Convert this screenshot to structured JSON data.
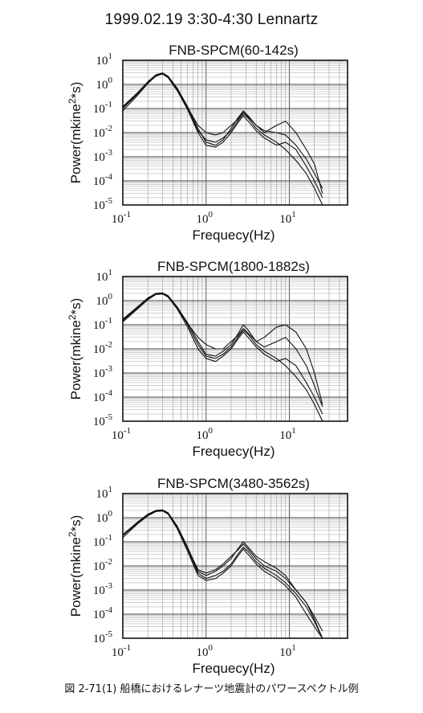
{
  "title": "1999.02.19 3:30-4:30  Lennartz",
  "caption": "図 2-71(1)  船橋におけるレナーツ地震計のパワースペクトル例",
  "chart_data": [
    {
      "type": "line",
      "title": "FNB-SPCM(60-142s)",
      "xlabel": "Frequecy(Hz)",
      "ylabel": "Power(mkine²*s)",
      "xscale": "log",
      "yscale": "log",
      "xlim": [
        0.1,
        50
      ],
      "ylim": [
        1e-05,
        10
      ],
      "x_ticks": [
        "10-1",
        "100",
        "101"
      ],
      "y_ticks": [
        "10-5",
        "10-4",
        "10-3",
        "10-2",
        "10-1",
        "100",
        "101"
      ],
      "grid": true,
      "series": [
        {
          "x": [
            0.1,
            0.15,
            0.2,
            0.25,
            0.3,
            0.35,
            0.45,
            0.6,
            0.8,
            1.0,
            1.3,
            1.6,
            2.0,
            2.4,
            2.8,
            3.2,
            4.0,
            5.0,
            7.0,
            9.0,
            12,
            16,
            20,
            25
          ],
          "y": [
            0.1,
            0.4,
            1.2,
            2.3,
            2.8,
            2.0,
            0.6,
            0.1,
            0.012,
            0.005,
            0.004,
            0.006,
            0.012,
            0.03,
            0.06,
            0.04,
            0.015,
            0.008,
            0.004,
            0.002,
            0.0007,
            0.0002,
            5e-05,
            1e-05
          ]
        },
        {
          "x": [
            0.1,
            0.15,
            0.2,
            0.25,
            0.3,
            0.35,
            0.45,
            0.6,
            0.8,
            1.0,
            1.3,
            1.6,
            2.0,
            2.4,
            2.8,
            3.2,
            4.0,
            5.0,
            7.0,
            9.0,
            12,
            16,
            20,
            25
          ],
          "y": [
            0.12,
            0.45,
            1.3,
            2.5,
            3.0,
            2.2,
            0.7,
            0.12,
            0.015,
            0.004,
            0.003,
            0.005,
            0.015,
            0.04,
            0.08,
            0.05,
            0.02,
            0.01,
            0.02,
            0.03,
            0.01,
            0.002,
            0.0005,
            3e-05
          ]
        },
        {
          "x": [
            0.1,
            0.15,
            0.2,
            0.25,
            0.3,
            0.35,
            0.45,
            0.6,
            0.8,
            1.0,
            1.3,
            1.6,
            2.0,
            2.4,
            2.8,
            3.2,
            4.0,
            5.0,
            7.0,
            9.0,
            12,
            16,
            20,
            25
          ],
          "y": [
            0.08,
            0.35,
            1.1,
            2.2,
            2.7,
            1.9,
            0.55,
            0.09,
            0.01,
            0.003,
            0.0025,
            0.004,
            0.01,
            0.025,
            0.05,
            0.03,
            0.012,
            0.006,
            0.003,
            0.004,
            0.002,
            0.0004,
            0.0001,
            2e-05
          ]
        },
        {
          "x": [
            0.1,
            0.15,
            0.2,
            0.25,
            0.3,
            0.35,
            0.45,
            0.6,
            0.8,
            1.0,
            1.3,
            1.6,
            2.0,
            2.4,
            2.8,
            3.2,
            4.0,
            5.0,
            7.0,
            9.0,
            12,
            16,
            20,
            25
          ],
          "y": [
            0.11,
            0.42,
            1.25,
            2.4,
            2.9,
            2.1,
            0.65,
            0.11,
            0.02,
            0.01,
            0.008,
            0.01,
            0.02,
            0.035,
            0.07,
            0.045,
            0.02,
            0.012,
            0.01,
            0.008,
            0.003,
            0.0008,
            0.0002,
            5e-05
          ]
        }
      ]
    },
    {
      "type": "line",
      "title": "FNB-SPCM(1800-1882s)",
      "xlabel": "Frequecy(Hz)",
      "ylabel": "Power(mkine²*s)",
      "xscale": "log",
      "yscale": "log",
      "xlim": [
        0.1,
        50
      ],
      "ylim": [
        1e-05,
        10
      ],
      "x_ticks": [
        "10-1",
        "100",
        "101"
      ],
      "y_ticks": [
        "10-5",
        "10-4",
        "10-3",
        "10-2",
        "10-1",
        "100",
        "101"
      ],
      "grid": true,
      "series": [
        {
          "x": [
            0.1,
            0.15,
            0.2,
            0.25,
            0.3,
            0.35,
            0.45,
            0.6,
            0.8,
            1.0,
            1.3,
            1.6,
            2.0,
            2.4,
            2.8,
            3.2,
            4.0,
            5.0,
            7.0,
            9.0,
            12,
            16,
            20,
            25
          ],
          "y": [
            0.15,
            0.5,
            1.2,
            1.9,
            2.0,
            1.5,
            0.5,
            0.1,
            0.015,
            0.005,
            0.004,
            0.006,
            0.012,
            0.03,
            0.06,
            0.04,
            0.015,
            0.008,
            0.004,
            0.002,
            0.0007,
            0.0002,
            5e-05,
            1e-05
          ]
        },
        {
          "x": [
            0.1,
            0.15,
            0.2,
            0.25,
            0.3,
            0.35,
            0.45,
            0.6,
            0.8,
            1.0,
            1.3,
            1.6,
            2.0,
            2.4,
            2.8,
            3.2,
            4.0,
            5.0,
            7.0,
            9.0,
            12,
            16,
            20,
            25
          ],
          "y": [
            0.17,
            0.55,
            1.3,
            2.0,
            2.1,
            1.6,
            0.55,
            0.12,
            0.02,
            0.006,
            0.005,
            0.008,
            0.015,
            0.04,
            0.1,
            0.06,
            0.02,
            0.03,
            0.08,
            0.1,
            0.05,
            0.01,
            0.001,
            5e-05
          ]
        },
        {
          "x": [
            0.1,
            0.15,
            0.2,
            0.25,
            0.3,
            0.35,
            0.45,
            0.6,
            0.8,
            1.0,
            1.3,
            1.6,
            2.0,
            2.4,
            2.8,
            3.2,
            4.0,
            5.0,
            7.0,
            9.0,
            12,
            16,
            20,
            25
          ],
          "y": [
            0.13,
            0.45,
            1.1,
            1.8,
            1.9,
            1.4,
            0.45,
            0.08,
            0.01,
            0.004,
            0.003,
            0.005,
            0.01,
            0.025,
            0.05,
            0.03,
            0.012,
            0.006,
            0.003,
            0.004,
            0.002,
            0.0004,
            0.0001,
            2e-05
          ]
        },
        {
          "x": [
            0.1,
            0.15,
            0.2,
            0.25,
            0.3,
            0.35,
            0.45,
            0.6,
            0.8,
            1.0,
            1.3,
            1.6,
            2.0,
            2.4,
            2.8,
            3.2,
            4.0,
            5.0,
            7.0,
            9.0,
            12,
            16,
            20,
            25
          ],
          "y": [
            0.16,
            0.52,
            1.25,
            1.95,
            2.05,
            1.55,
            0.52,
            0.11,
            0.03,
            0.015,
            0.01,
            0.01,
            0.02,
            0.035,
            0.07,
            0.045,
            0.02,
            0.012,
            0.02,
            0.03,
            0.01,
            0.002,
            0.0003,
            4e-05
          ]
        }
      ]
    },
    {
      "type": "line",
      "title": "FNB-SPCM(3480-3562s)",
      "xlabel": "Frequecy(Hz)",
      "ylabel": "Power(mkine²*s)",
      "xscale": "log",
      "yscale": "log",
      "xlim": [
        0.1,
        50
      ],
      "ylim": [
        1e-05,
        10
      ],
      "x_ticks": [
        "10-1",
        "100",
        "101"
      ],
      "y_ticks": [
        "10-5",
        "10-4",
        "10-3",
        "10-2",
        "10-1",
        "100",
        "101"
      ],
      "grid": true,
      "series": [
        {
          "x": [
            0.1,
            0.15,
            0.2,
            0.25,
            0.3,
            0.35,
            0.45,
            0.6,
            0.8,
            1.0,
            1.3,
            1.6,
            2.0,
            2.4,
            2.8,
            3.2,
            4.0,
            5.0,
            7.0,
            9.0,
            12,
            16,
            20,
            25
          ],
          "y": [
            0.18,
            0.6,
            1.3,
            1.9,
            2.0,
            1.5,
            0.4,
            0.05,
            0.005,
            0.003,
            0.004,
            0.006,
            0.012,
            0.03,
            0.06,
            0.04,
            0.015,
            0.008,
            0.004,
            0.002,
            0.0007,
            0.0002,
            5e-05,
            1e-05
          ]
        },
        {
          "x": [
            0.1,
            0.15,
            0.2,
            0.25,
            0.3,
            0.35,
            0.45,
            0.6,
            0.8,
            1.0,
            1.3,
            1.6,
            2.0,
            2.4,
            2.8,
            3.2,
            4.0,
            5.0,
            7.0,
            9.0,
            12,
            16,
            20,
            25
          ],
          "y": [
            0.2,
            0.65,
            1.4,
            2.0,
            2.1,
            1.6,
            0.45,
            0.06,
            0.006,
            0.004,
            0.006,
            0.01,
            0.02,
            0.05,
            0.1,
            0.06,
            0.025,
            0.015,
            0.008,
            0.004,
            0.001,
            0.0003,
            8e-05,
            2e-05
          ]
        },
        {
          "x": [
            0.1,
            0.15,
            0.2,
            0.25,
            0.3,
            0.35,
            0.45,
            0.6,
            0.8,
            1.0,
            1.3,
            1.6,
            2.0,
            2.4,
            2.8,
            3.2,
            4.0,
            5.0,
            7.0,
            9.0,
            12,
            16,
            20,
            25
          ],
          "y": [
            0.15,
            0.55,
            1.2,
            1.8,
            1.9,
            1.4,
            0.35,
            0.04,
            0.004,
            0.0025,
            0.003,
            0.005,
            0.01,
            0.025,
            0.05,
            0.03,
            0.012,
            0.006,
            0.003,
            0.0015,
            0.0005,
            0.0001,
            3e-05,
            1e-05
          ]
        },
        {
          "x": [
            0.1,
            0.15,
            0.2,
            0.25,
            0.3,
            0.35,
            0.45,
            0.6,
            0.8,
            1.0,
            1.3,
            1.6,
            2.0,
            2.4,
            2.8,
            3.2,
            4.0,
            5.0,
            7.0,
            9.0,
            12,
            16,
            20,
            25
          ],
          "y": [
            0.19,
            0.62,
            1.35,
            1.95,
            2.05,
            1.55,
            0.42,
            0.055,
            0.007,
            0.005,
            0.007,
            0.012,
            0.025,
            0.045,
            0.08,
            0.05,
            0.02,
            0.01,
            0.006,
            0.003,
            0.001,
            0.0003,
            6e-05,
            1e-05
          ]
        }
      ]
    }
  ]
}
